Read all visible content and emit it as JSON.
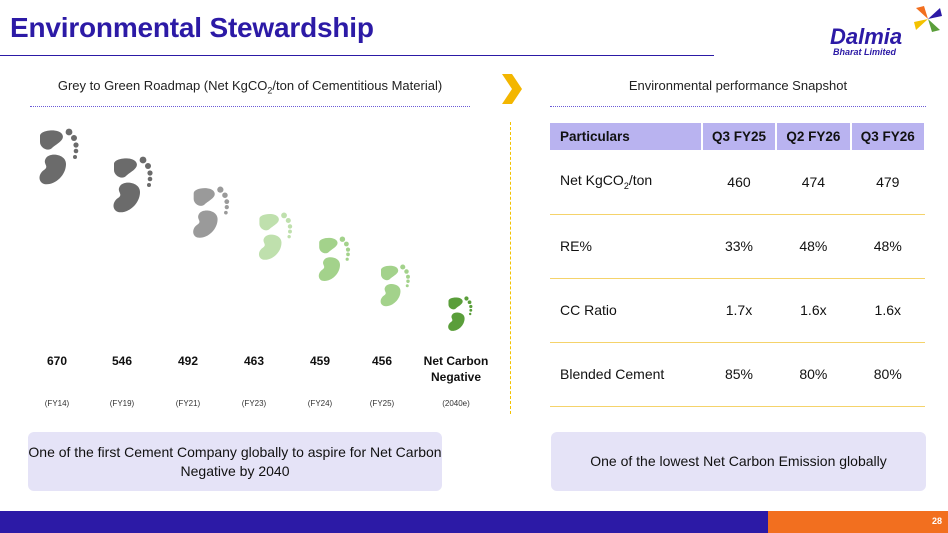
{
  "slide": {
    "title": "Environmental Stewardship",
    "page_number": "28"
  },
  "logo": {
    "name": "Dalmia",
    "subtitle": "Bharat Limited"
  },
  "roadmap": {
    "heading_prefix": "Grey to Green Roadmap (Net KgCO",
    "heading_sub": "2",
    "heading_suffix": "/ton of Cementitious Material)",
    "points": [
      {
        "value": "670",
        "year": "(FY14)",
        "color": "#6b6b6b"
      },
      {
        "value": "546",
        "year": "(FY19)",
        "color": "#6b6b6b"
      },
      {
        "value": "492",
        "year": "(FY21)",
        "color": "#9a9a9a"
      },
      {
        "value": "463",
        "year": "(FY23)",
        "color": "#bfe0ad"
      },
      {
        "value": "459",
        "year": "(FY24)",
        "color": "#a3d28b"
      },
      {
        "value": "456",
        "year": "(FY25)",
        "color": "#a3d28b"
      },
      {
        "value_line1": "Net Carbon",
        "value_line2": "Negative",
        "year": "(2040e)",
        "color": "#5a9e3a"
      }
    ],
    "callout": "One of the first Cement Company globally to aspire for Net Carbon Negative by 2040"
  },
  "snapshot": {
    "heading": "Environmental performance Snapshot",
    "columns": [
      "Particulars",
      "Q3 FY25",
      "Q2 FY26",
      "Q3 FY26"
    ],
    "rows": [
      {
        "label_prefix": "Net KgCO",
        "label_sub": "2",
        "label_suffix": "/ton",
        "values": [
          "460",
          "474",
          "479"
        ]
      },
      {
        "label": "RE%",
        "values": [
          "33%",
          "48%",
          "48%"
        ]
      },
      {
        "label": "CC Ratio",
        "values": [
          "1.7x",
          "1.6x",
          "1.6x"
        ]
      },
      {
        "label": "Blended Cement",
        "values": [
          "85%",
          "80%",
          "80%"
        ]
      }
    ],
    "callout": "One of the lowest Net Carbon Emission globally"
  },
  "colors": {
    "brand_blue": "#2c1aa6",
    "brand_orange": "#f26f1f",
    "table_header": "#b9b3f0",
    "callout_bg": "#e5e3f7",
    "accent_yellow": "#f3c200"
  }
}
